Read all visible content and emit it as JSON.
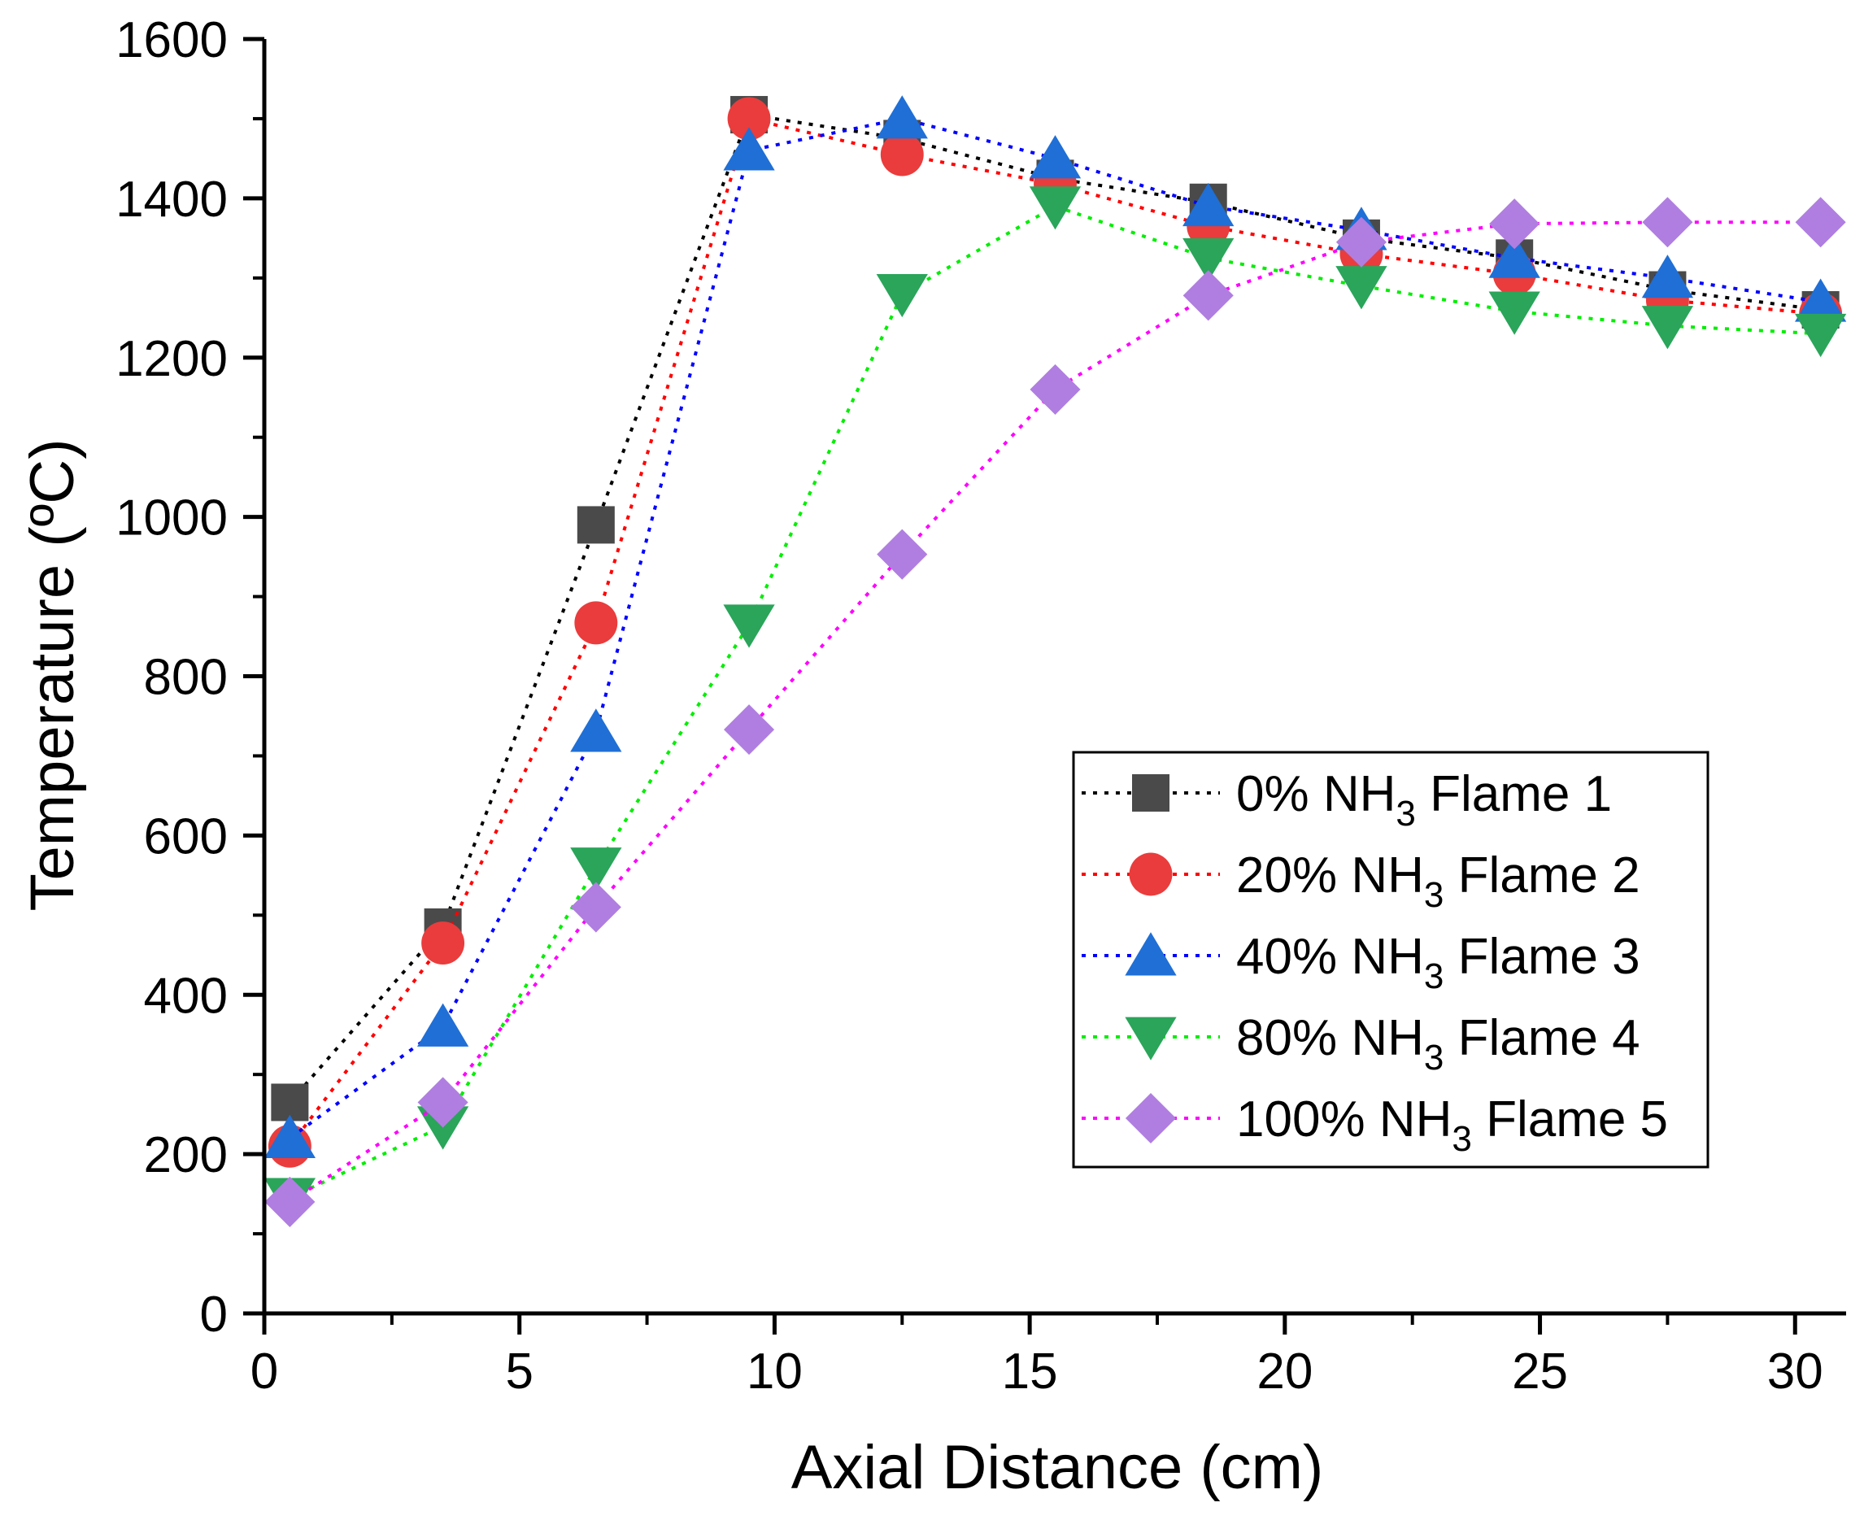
{
  "chart_data": {
    "type": "line",
    "title": "",
    "xlabel": "Axial Distance (cm)",
    "ylabel": "Temperature (ºC)",
    "xlim": [
      0,
      31
    ],
    "ylim": [
      0,
      1600
    ],
    "x_ticks": [
      0,
      5,
      10,
      15,
      20,
      25,
      30
    ],
    "y_ticks": [
      0,
      200,
      400,
      600,
      800,
      1000,
      1200,
      1400,
      1600
    ],
    "x_tick_labels": [
      "0",
      "5",
      "10",
      "15",
      "20",
      "25",
      "30"
    ],
    "y_tick_labels": [
      "0",
      "200",
      "400",
      "600",
      "800",
      "1000",
      "1200",
      "1400",
      "1600"
    ],
    "x": [
      0.5,
      3.5,
      6.5,
      9.5,
      12.5,
      15.5,
      18.5,
      21.5,
      24.5,
      27.5,
      30.5
    ],
    "legend_position": "center-right",
    "series": [
      {
        "name": "0% NH3 Flame 1",
        "label_pre": "0% NH",
        "label_sub": "3",
        "label_post": " Flame 1",
        "marker": "square",
        "marker_color": "#4a4a4a",
        "line_color": "#000000",
        "values": [
          265,
          485,
          990,
          1505,
          1475,
          1425,
          1395,
          1350,
          1325,
          1285,
          1260
        ]
      },
      {
        "name": "20% NH3 Flame 2",
        "label_pre": "20% NH",
        "label_sub": "3",
        "label_post": " Flame 2",
        "marker": "circle",
        "marker_color": "#ea3c3c",
        "line_color": "#ff0000",
        "values": [
          210,
          465,
          867,
          1500,
          1455,
          1418,
          1365,
          1330,
          1305,
          1272,
          1255
        ]
      },
      {
        "name": "40% NH3 Flame 3",
        "label_pre": "40% NH",
        "label_sub": "3",
        "label_post": " Flame 3",
        "marker": "triangle-up",
        "marker_color": "#1f6fd6",
        "line_color": "#0000ff",
        "values": [
          220,
          360,
          730,
          1460,
          1500,
          1450,
          1390,
          1360,
          1325,
          1300,
          1270
        ]
      },
      {
        "name": "80% NH3 Flame 4",
        "label_pre": "80% NH",
        "label_sub": "3",
        "label_post": " Flame 4",
        "marker": "triangle-down",
        "marker_color": "#2aa55a",
        "line_color": "#00ee00",
        "values": [
          145,
          235,
          560,
          865,
          1280,
          1390,
          1325,
          1290,
          1258,
          1240,
          1230
        ]
      },
      {
        "name": "100% NH3 Flame 5",
        "label_pre": "100% NH",
        "label_sub": "3",
        "label_post": " Flame 5",
        "marker": "diamond",
        "marker_color": "#b07ee0",
        "line_color": "#ff00ff",
        "values": [
          140,
          265,
          510,
          733,
          953,
          1160,
          1278,
          1345,
          1368,
          1370,
          1370
        ]
      }
    ]
  }
}
